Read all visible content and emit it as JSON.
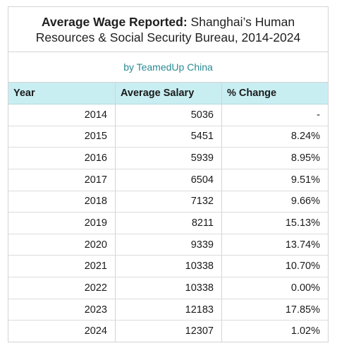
{
  "title": {
    "bold_part": "Average Wage Reported:",
    "rest_line1": " Shanghai’s Human",
    "line2": "Resources & Social Security Bureau, 2014-2024"
  },
  "subtitle": "by TeamedUp China",
  "colors": {
    "header_bg": "#c8eef2",
    "subtitle_text": "#2a8a92",
    "border": "#d4d4d4"
  },
  "chart_data": {
    "type": "table",
    "title": "Average Wage Reported: Shanghai’s Human Resources & Social Security Bureau, 2014-2024",
    "subtitle": "by TeamedUp China",
    "columns": [
      "Year",
      "Average Salary",
      "% Change"
    ],
    "rows": [
      [
        "2014",
        "5036",
        "-"
      ],
      [
        "2015",
        "5451",
        "8.24%"
      ],
      [
        "2016",
        "5939",
        "8.95%"
      ],
      [
        "2017",
        "6504",
        "9.51%"
      ],
      [
        "2018",
        "7132",
        "9.66%"
      ],
      [
        "2019",
        "8211",
        "15.13%"
      ],
      [
        "2020",
        "9339",
        "13.74%"
      ],
      [
        "2021",
        "10338",
        "10.70%"
      ],
      [
        "2022",
        "10338",
        "0.00%"
      ],
      [
        "2023",
        "12183",
        "17.85%"
      ],
      [
        "2024",
        "12307",
        "1.02%"
      ]
    ]
  }
}
